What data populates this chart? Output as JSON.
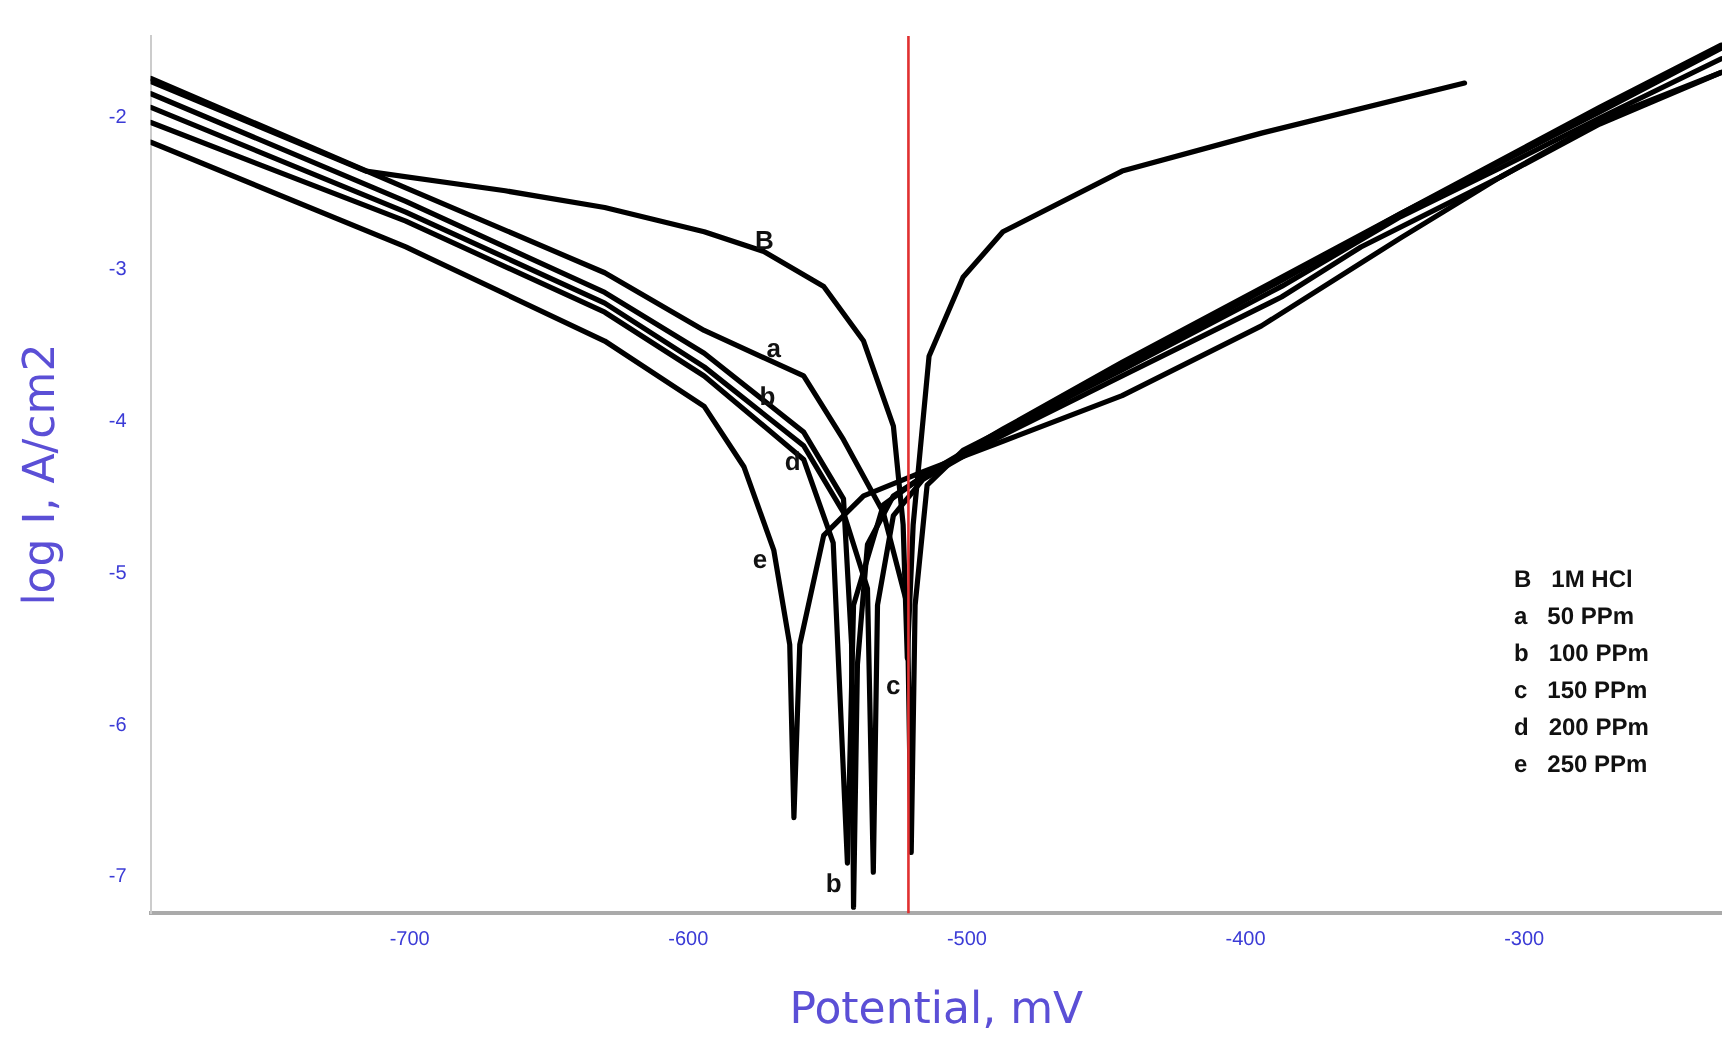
{
  "chart_data": {
    "type": "line",
    "xlabel": "Potential, mV",
    "ylabel": "log I, A/cm2",
    "xlim": [
      -793,
      -229
    ],
    "ylim": [
      -7.24,
      -1.46
    ],
    "xticks": [
      -700,
      -600,
      -500,
      -400,
      -300
    ],
    "yticks": [
      -2,
      -3,
      -4,
      -5,
      -6,
      -7
    ],
    "grid": false,
    "legend": false,
    "marker": "none",
    "line_style": "solid",
    "series": [
      {
        "color": "#000000",
        "x": [
          -792.9,
          -715.7,
          -665.7,
          -630,
          -594.3,
          -572.9,
          -551.4,
          -537.1,
          -526.4,
          -522.9,
          -521.4,
          -519.3,
          -513.6,
          -501.4,
          -487.1,
          -444.3,
          -394.3,
          -321.4
        ],
        "values": [
          -1.76,
          -2.35,
          -2.48,
          -2.59,
          -2.75,
          -2.88,
          -3.11,
          -3.47,
          -4.03,
          -4.68,
          -5.56,
          -4.68,
          -3.57,
          -3.05,
          -2.75,
          -2.35,
          -2.1,
          -1.77
        ]
      },
      {
        "color": "#000000",
        "x": [
          -792.9,
          -701.4,
          -630,
          -594.3,
          -558.6,
          -544.3,
          -530,
          -521.4,
          -520,
          -518.6,
          -514.3,
          -501.4,
          -444.3,
          -387.1,
          -344.3,
          -308.6,
          -272.9,
          -229.3
        ],
        "values": [
          -1.74,
          -2.46,
          -3.02,
          -3.4,
          -3.7,
          -4.12,
          -4.6,
          -5.21,
          -6.84,
          -5.21,
          -4.42,
          -4.19,
          -3.66,
          -3.11,
          -2.65,
          -2.33,
          -2,
          -1.61
        ]
      },
      {
        "color": "#000000",
        "x": [
          -792.9,
          -701.4,
          -630,
          -594.3,
          -558.6,
          -544.3,
          -541.4,
          -540.7,
          -539.3,
          -535.7,
          -526.4,
          -512.1,
          -487.1,
          -444.3,
          -387.1,
          -344.3,
          -272.9,
          -229.3
        ],
        "values": [
          -1.84,
          -2.55,
          -3.15,
          -3.55,
          -4.07,
          -4.51,
          -5.47,
          -7.2,
          -5.6,
          -4.81,
          -4.49,
          -4.32,
          -4.05,
          -3.61,
          -3.05,
          -2.63,
          -1.96,
          -1.54
        ]
      },
      {
        "color": "#000000",
        "x": [
          -792.9,
          -701.4,
          -630,
          -594.3,
          -558.6,
          -544.3,
          -535.7,
          -533.6,
          -532.1,
          -526.4,
          -515.7,
          -487.1,
          -444.3,
          -387.1,
          -344.3,
          -272.9,
          -229.3
        ],
        "values": [
          -1.93,
          -2.62,
          -3.22,
          -3.64,
          -4.16,
          -4.6,
          -5.1,
          -6.97,
          -5.21,
          -4.62,
          -4.38,
          -4.08,
          -3.64,
          -3.07,
          -2.63,
          -1.93,
          -1.52
        ]
      },
      {
        "color": "#000000",
        "x": [
          -792.9,
          -701.4,
          -630,
          -594.3,
          -558.6,
          -548,
          -542.9,
          -540.7,
          -530,
          -515.7,
          -487.1,
          -444.3,
          -387.1,
          -358.6,
          -308.6,
          -270.7,
          -229.3
        ],
        "values": [
          -2.03,
          -2.68,
          -3.28,
          -3.7,
          -4.25,
          -4.8,
          -6.91,
          -5.21,
          -4.55,
          -4.36,
          -4.09,
          -3.7,
          -3.18,
          -2.85,
          -2.39,
          -2.0,
          -1.7
        ]
      },
      {
        "color": "#000000",
        "x": [
          -792.9,
          -701.4,
          -630,
          -594.3,
          -580,
          -569.3,
          -563.6,
          -562.1,
          -560,
          -551.4,
          -537.1,
          -515.7,
          -487.1,
          -444.3,
          -394.3,
          -344.3,
          -308.6,
          -272.9,
          -229.3
        ],
        "values": [
          -2.16,
          -2.85,
          -3.47,
          -3.9,
          -4.3,
          -4.85,
          -5.47,
          -6.61,
          -5.47,
          -4.75,
          -4.49,
          -4.33,
          -4.13,
          -3.83,
          -3.37,
          -2.79,
          -2.39,
          -2.04,
          -1.7
        ]
      }
    ],
    "ref_lines": [
      {
        "axis": "x",
        "value": -521,
        "color": "#e03030"
      }
    ],
    "annotations": [
      {
        "text": "B",
        "x": -565,
        "y": -2.96
      },
      {
        "text": "a",
        "x": -562.4,
        "y": -3.67
      },
      {
        "text": "b",
        "x": -564.4,
        "y": -3.99
      },
      {
        "text": "d",
        "x": -555.4,
        "y": -4.42
      },
      {
        "text": "e",
        "x": -567.4,
        "y": -5.06
      },
      {
        "text": "c",
        "x": -532.6,
        "y": -5.8
      },
      {
        "text": "b",
        "x": -540.7,
        "y": -7.2
      },
      "B   1M HCl",
      "a   50 PPm",
      "b   100 PPm",
      "c   150 PPm",
      "d   200 PPm",
      "e   250 PPm"
    ]
  }
}
